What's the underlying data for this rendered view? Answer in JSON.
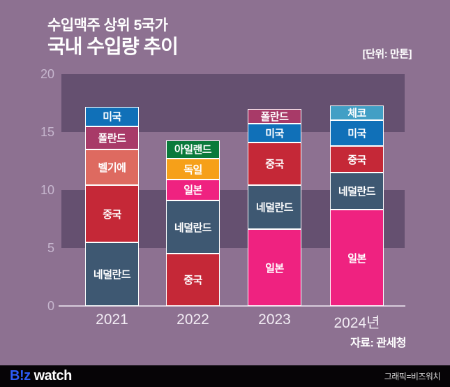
{
  "header": {
    "title_line1": "수입맥주 상위 5국가",
    "title_line2": "국내 수입량 추이",
    "unit_label": "[단위: 만톤]"
  },
  "source_label": "자료: 관세청",
  "footer": {
    "logo_part1": "B!z",
    "logo_part2": "watch",
    "credit": "그래픽=비즈워치"
  },
  "colors": {
    "background": "#8d7191",
    "band_dark": "#655070",
    "axis_line": "#d8ccdc",
    "ytick_text": "#c6b6ce",
    "xlabel_text": "#f2ecf4",
    "footer_bg": "#060406",
    "logo_blue": "#2d5bf7",
    "segment_border": "#ffffff"
  },
  "chart_data": {
    "type": "bar",
    "stacked": true,
    "title": "수입맥주 상위 5국가 국내 수입량 추이",
    "unit": "만톤",
    "ylabel": "",
    "xlabel": "",
    "ylim": [
      0,
      20
    ],
    "yticks": [
      20,
      15,
      10,
      5,
      0
    ],
    "shaded_value_bands": [
      [
        15,
        20
      ],
      [
        5,
        10
      ]
    ],
    "grid": false,
    "legend": "labels-inside-segments",
    "categories": [
      "2021",
      "2022",
      "2023",
      "2024년"
    ],
    "country_colors": {
      "네덜란드": "#3e5872",
      "중국": "#c52837",
      "벨기에": "#de6a60",
      "폴란드": "#a83a68",
      "미국": "#1070b8",
      "아일랜드": "#0a7a3b",
      "독일": "#f6a019",
      "일본": "#ef2280",
      "체코": "#429fc5"
    },
    "bars": [
      {
        "category": "2021",
        "total": 17.2,
        "segments_bottom_to_top": [
          {
            "country": "네덜란드",
            "value": 5.5
          },
          {
            "country": "중국",
            "value": 4.9
          },
          {
            "country": "벨기에",
            "value": 3.1
          },
          {
            "country": "폴란드",
            "value": 2.0
          },
          {
            "country": "미국",
            "value": 1.7
          }
        ]
      },
      {
        "category": "2022",
        "total": 14.3,
        "segments_bottom_to_top": [
          {
            "country": "중국",
            "value": 4.5
          },
          {
            "country": "네덜란드",
            "value": 4.6
          },
          {
            "country": "일본",
            "value": 1.8
          },
          {
            "country": "독일",
            "value": 1.8
          },
          {
            "country": "아일랜드",
            "value": 1.6
          }
        ]
      },
      {
        "category": "2023",
        "total": 17.0,
        "segments_bottom_to_top": [
          {
            "country": "일본",
            "value": 6.6
          },
          {
            "country": "네덜란드",
            "value": 3.8
          },
          {
            "country": "중국",
            "value": 3.7
          },
          {
            "country": "미국",
            "value": 1.6
          },
          {
            "country": "폴란드",
            "value": 1.3
          }
        ]
      },
      {
        "category": "2024년",
        "total": 17.3,
        "segments_bottom_to_top": [
          {
            "country": "일본",
            "value": 8.3
          },
          {
            "country": "네덜란드",
            "value": 3.2
          },
          {
            "country": "중국",
            "value": 2.3
          },
          {
            "country": "미국",
            "value": 2.2
          },
          {
            "country": "체코",
            "value": 1.3
          }
        ]
      }
    ]
  }
}
